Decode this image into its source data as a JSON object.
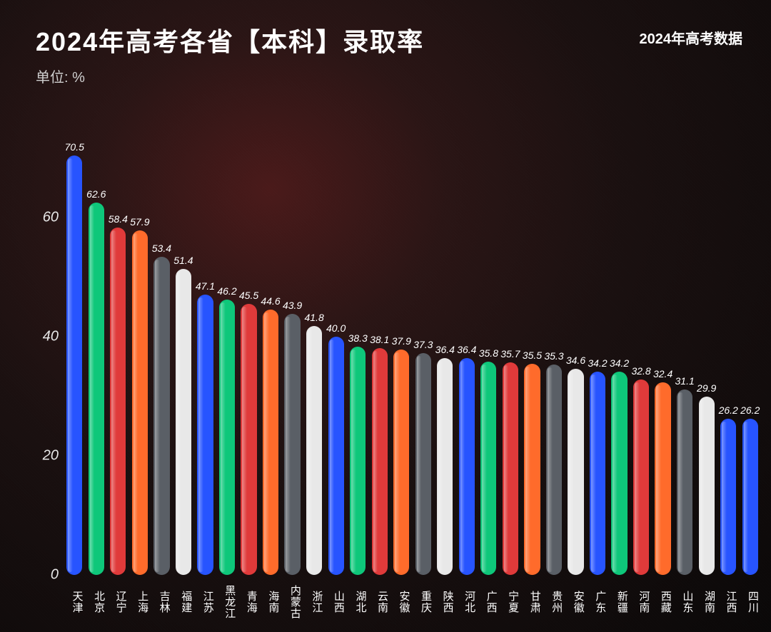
{
  "header": {
    "title": "2024年高考各省【本科】录取率",
    "unit": "单位: %",
    "subtitle": "2024年高考数据"
  },
  "chart": {
    "type": "bar",
    "ylim": [
      0,
      75
    ],
    "yticks": [
      0,
      20,
      40,
      60
    ],
    "background_color": "#0a0a0a",
    "value_fontsize": 14,
    "label_fontsize": 15,
    "title_fontsize": 36,
    "bar_width": 0.78,
    "bar_radius": 14,
    "colors": {
      "blue": "#2754ff",
      "green": "#0ec77a",
      "red": "#e03a3a",
      "orange": "#ff6b2b",
      "gray": "#5a5f66",
      "white": "#e8e8e8"
    },
    "bars": [
      {
        "label": "天津",
        "value": 70.5,
        "color": "#2754ff"
      },
      {
        "label": "北京",
        "value": 62.6,
        "color": "#0ec77a"
      },
      {
        "label": "辽宁",
        "value": 58.4,
        "color": "#e03a3a"
      },
      {
        "label": "上海",
        "value": 57.9,
        "color": "#ff6b2b"
      },
      {
        "label": "吉林",
        "value": 53.4,
        "color": "#5a5f66"
      },
      {
        "label": "福建",
        "value": 51.4,
        "color": "#e8e8e8"
      },
      {
        "label": "江苏",
        "value": 47.1,
        "color": "#2754ff"
      },
      {
        "label": "黑龙江",
        "value": 46.2,
        "color": "#0ec77a"
      },
      {
        "label": "青海",
        "value": 45.5,
        "color": "#e03a3a"
      },
      {
        "label": "海南",
        "value": 44.6,
        "color": "#ff6b2b"
      },
      {
        "label": "内蒙古",
        "value": 43.9,
        "color": "#5a5f66"
      },
      {
        "label": "浙江",
        "value": 41.8,
        "color": "#e8e8e8"
      },
      {
        "label": "山西",
        "value": 40.0,
        "color": "#2754ff"
      },
      {
        "label": "湖北",
        "value": 38.3,
        "color": "#0ec77a"
      },
      {
        "label": "云南",
        "value": 38.1,
        "color": "#e03a3a"
      },
      {
        "label": "安徽",
        "value": 37.9,
        "color": "#ff6b2b"
      },
      {
        "label": "重庆",
        "value": 37.3,
        "color": "#5a5f66"
      },
      {
        "label": "陕西",
        "value": 36.4,
        "color": "#e8e8e8"
      },
      {
        "label": "河北",
        "value": 36.4,
        "color": "#2754ff"
      },
      {
        "label": "广西",
        "value": 35.8,
        "color": "#0ec77a"
      },
      {
        "label": "宁夏",
        "value": 35.7,
        "color": "#e03a3a"
      },
      {
        "label": "甘肃",
        "value": 35.5,
        "color": "#ff6b2b"
      },
      {
        "label": "贵州",
        "value": 35.3,
        "color": "#5a5f66"
      },
      {
        "label": "安徽",
        "value": 34.6,
        "color": "#e8e8e8"
      },
      {
        "label": "广东",
        "value": 34.2,
        "color": "#2754ff"
      },
      {
        "label": "新疆",
        "value": 34.2,
        "color": "#0ec77a"
      },
      {
        "label": "河南",
        "value": 32.8,
        "color": "#e03a3a"
      },
      {
        "label": "西藏",
        "value": 32.4,
        "color": "#ff6b2b"
      },
      {
        "label": "山东",
        "value": 31.1,
        "color": "#5a5f66"
      },
      {
        "label": "湖南",
        "value": 29.9,
        "color": "#e8e8e8"
      },
      {
        "label": "江西",
        "value": 26.2,
        "color": "#2754ff"
      },
      {
        "label": "四川",
        "value": 26.2,
        "color": "#2754ff"
      }
    ]
  }
}
